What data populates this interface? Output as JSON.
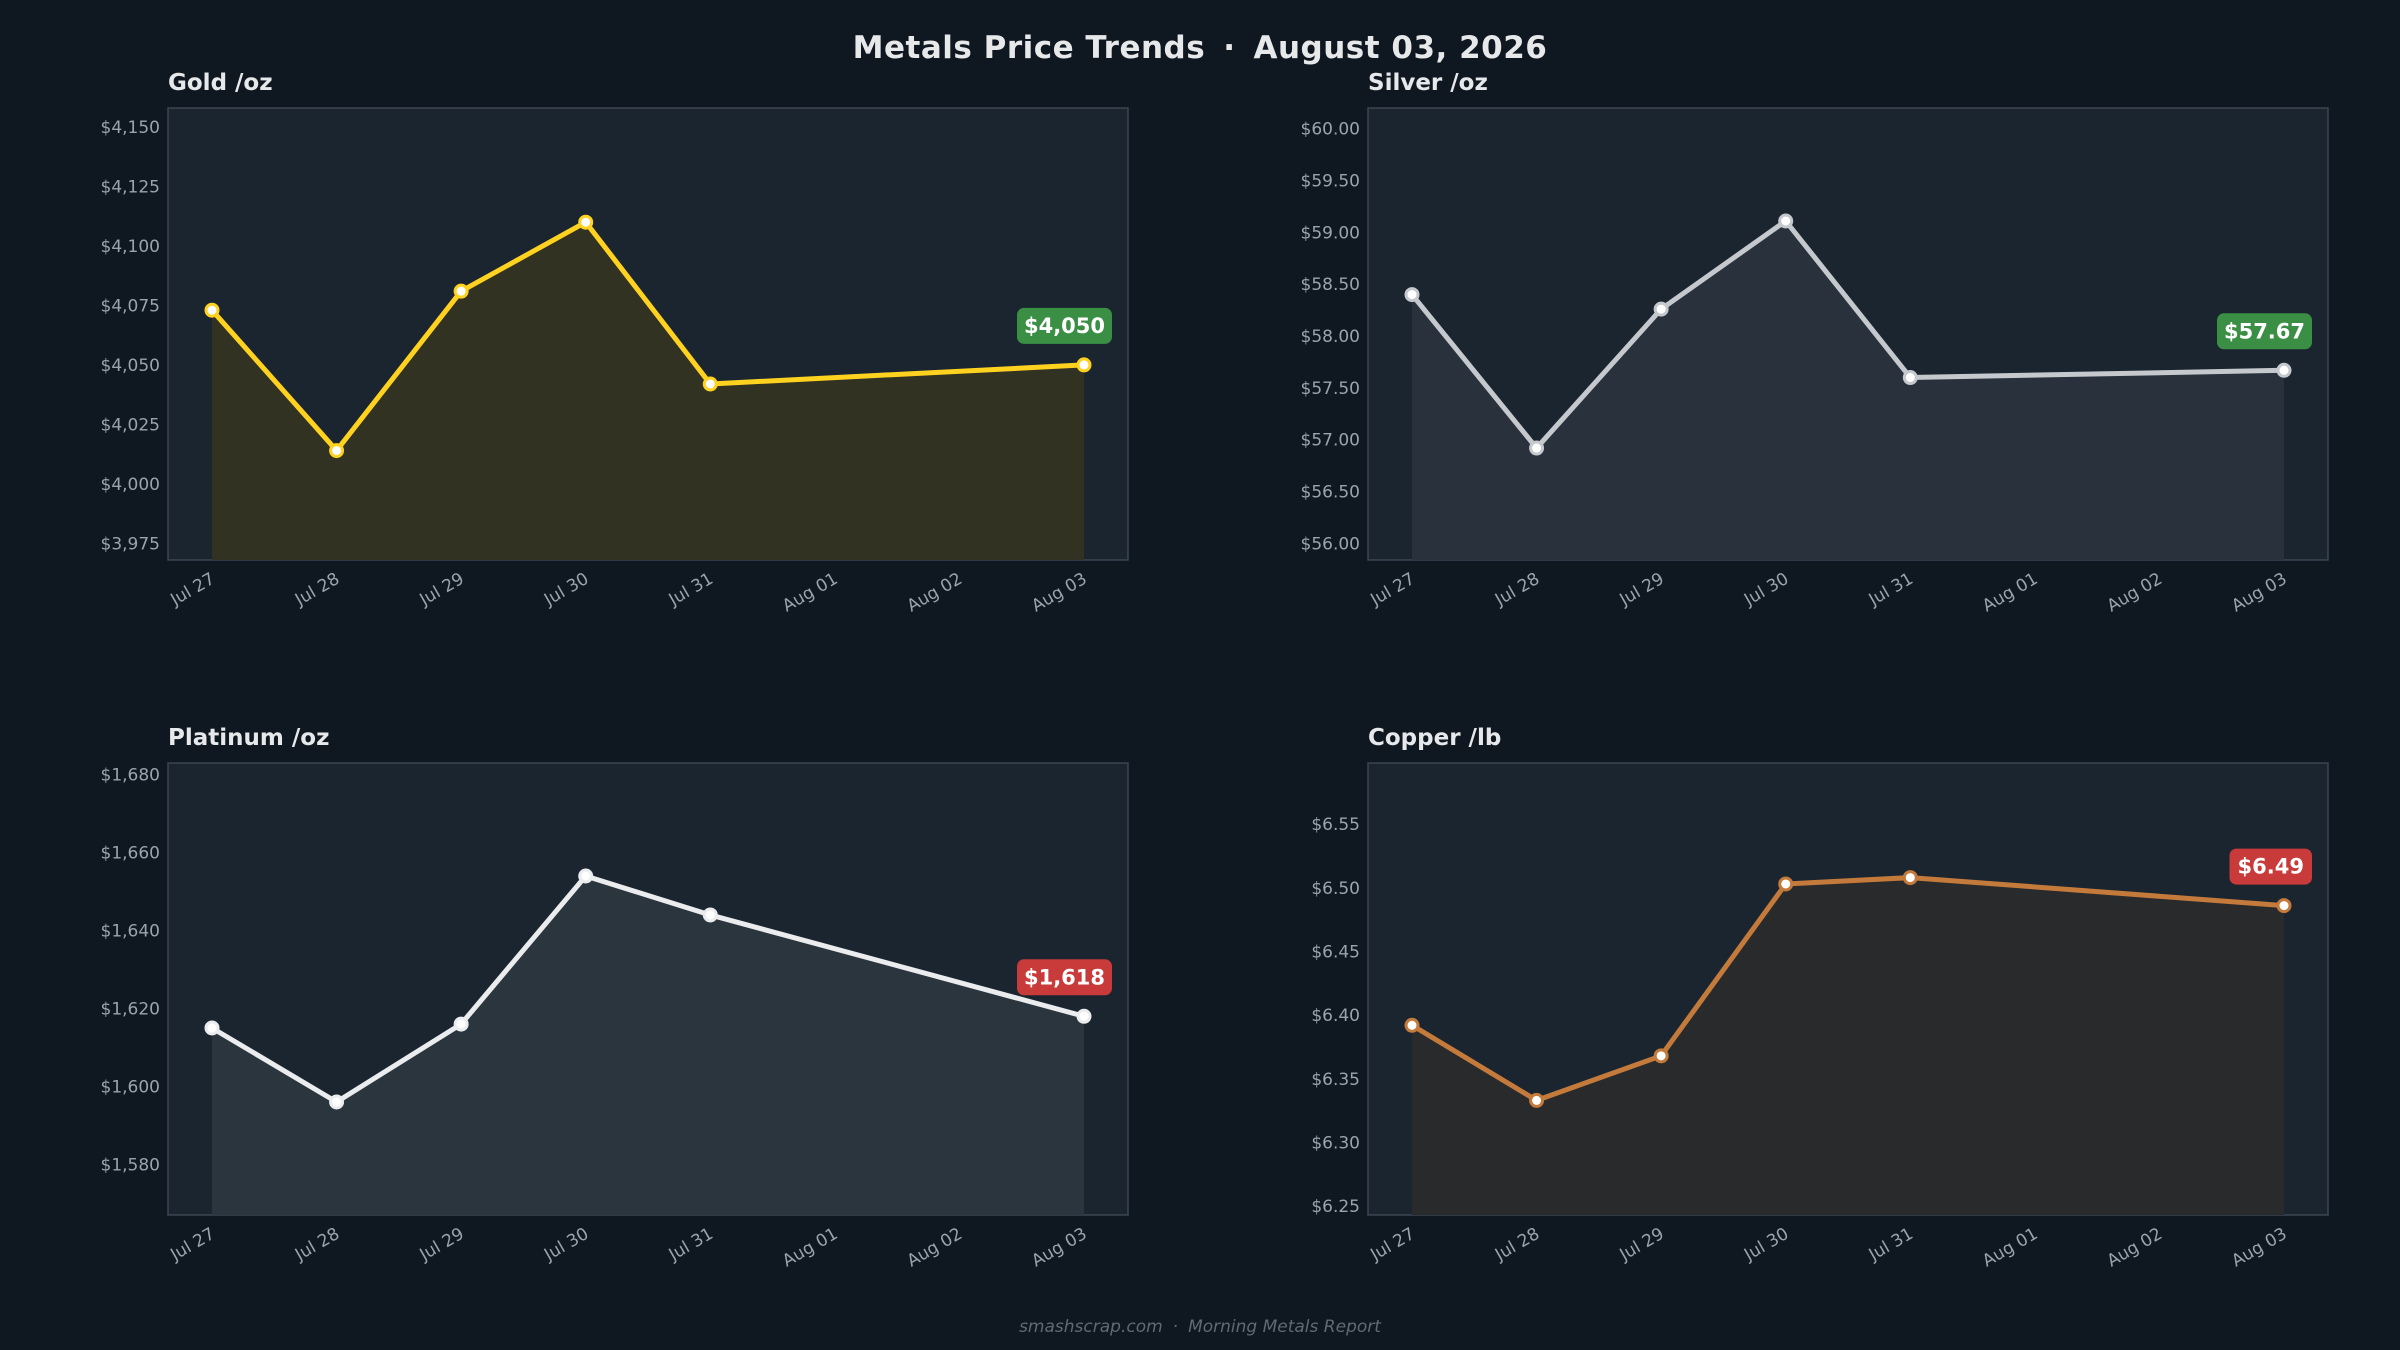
{
  "header": {
    "title": "Metals Price Trends",
    "separator": "·",
    "date": "August 03, 2026"
  },
  "footer": {
    "site": "smashscrap.com",
    "separator": "·",
    "report": "Morning Metals Report"
  },
  "colors": {
    "background": "#0f1720",
    "panel": "#1b2530",
    "up_badge": "#3a8f45",
    "down_badge": "#c93a3a"
  },
  "chart_data": [
    {
      "type": "line",
      "title": "Gold  /oz",
      "color": "#ffd21f",
      "fill": "#333322",
      "x": [
        "Jul 27",
        "Jul 28",
        "Jul 29",
        "Jul 30",
        "Jul 31",
        "Aug 01",
        "Aug 02",
        "Aug 03"
      ],
      "points": [
        {
          "x": "Jul 27",
          "y": 4073
        },
        {
          "x": "Jul 28",
          "y": 4014
        },
        {
          "x": "Jul 29",
          "y": 4081
        },
        {
          "x": "Jul 30",
          "y": 4110
        },
        {
          "x": "Jul 31",
          "y": 4042
        },
        {
          "x": "Aug 03",
          "y": 4050
        }
      ],
      "yticks": [
        3975,
        4000,
        4025,
        4050,
        4075,
        4100,
        4125,
        4150
      ],
      "ytick_labels": [
        "$3,975",
        "$4,000",
        "$4,025",
        "$4,050",
        "$4,075",
        "$4,100",
        "$4,125",
        "$4,150"
      ],
      "ylim": [
        3968,
        4158
      ],
      "badge": {
        "label": "$4,050",
        "direction": "up"
      }
    },
    {
      "type": "line",
      "title": "Silver  /oz",
      "color": "#c5c9cd",
      "fill": "#2a333d",
      "x": [
        "Jul 27",
        "Jul 28",
        "Jul 29",
        "Jul 30",
        "Jul 31",
        "Aug 01",
        "Aug 02",
        "Aug 03"
      ],
      "points": [
        {
          "x": "Jul 27",
          "y": 58.4
        },
        {
          "x": "Jul 28",
          "y": 56.92
        },
        {
          "x": "Jul 29",
          "y": 58.26
        },
        {
          "x": "Jul 30",
          "y": 59.11
        },
        {
          "x": "Jul 31",
          "y": 57.6
        },
        {
          "x": "Aug 03",
          "y": 57.67
        }
      ],
      "yticks": [
        56.0,
        56.5,
        57.0,
        57.5,
        58.0,
        58.5,
        59.0,
        59.5,
        60.0
      ],
      "ytick_labels": [
        "$56.00",
        "$56.50",
        "$57.00",
        "$57.50",
        "$58.00",
        "$58.50",
        "$59.00",
        "$59.50",
        "$60.00"
      ],
      "ylim": [
        55.84,
        60.2
      ],
      "badge": {
        "label": "$57.67",
        "direction": "up"
      }
    },
    {
      "type": "line",
      "title": "Platinum  /oz",
      "color": "#eaecee",
      "fill": "#2c363f",
      "x": [
        "Jul 27",
        "Jul 28",
        "Jul 29",
        "Jul 30",
        "Jul 31",
        "Aug 01",
        "Aug 02",
        "Aug 03"
      ],
      "points": [
        {
          "x": "Jul 27",
          "y": 1615
        },
        {
          "x": "Jul 28",
          "y": 1596
        },
        {
          "x": "Jul 29",
          "y": 1616
        },
        {
          "x": "Jul 30",
          "y": 1654
        },
        {
          "x": "Jul 31",
          "y": 1644
        },
        {
          "x": "Aug 03",
          "y": 1618
        }
      ],
      "yticks": [
        1580,
        1600,
        1620,
        1640,
        1660,
        1680
      ],
      "ytick_labels": [
        "$1,580",
        "$1,600",
        "$1,620",
        "$1,640",
        "$1,660",
        "$1,680"
      ],
      "ylim": [
        1567,
        1683
      ],
      "badge": {
        "label": "$1,618",
        "direction": "down"
      }
    },
    {
      "type": "line",
      "title": "Copper  /lb",
      "color": "#c47a3a",
      "fill": "#2a2a2c",
      "x": [
        "Jul 27",
        "Jul 28",
        "Jul 29",
        "Jul 30",
        "Jul 31",
        "Aug 01",
        "Aug 02",
        "Aug 03"
      ],
      "points": [
        {
          "x": "Jul 27",
          "y": 6.392
        },
        {
          "x": "Jul 28",
          "y": 6.333
        },
        {
          "x": "Jul 29",
          "y": 6.368
        },
        {
          "x": "Jul 30",
          "y": 6.503
        },
        {
          "x": "Jul 31",
          "y": 6.508
        },
        {
          "x": "Aug 03",
          "y": 6.486
        }
      ],
      "yticks": [
        6.25,
        6.3,
        6.35,
        6.4,
        6.45,
        6.5,
        6.55
      ],
      "ytick_labels": [
        "$6.25",
        "$6.30",
        "$6.35",
        "$6.40",
        "$6.45",
        "$6.50",
        "$6.55"
      ],
      "ylim": [
        6.243,
        6.598
      ],
      "badge": {
        "label": "$6.49",
        "direction": "down"
      }
    }
  ]
}
